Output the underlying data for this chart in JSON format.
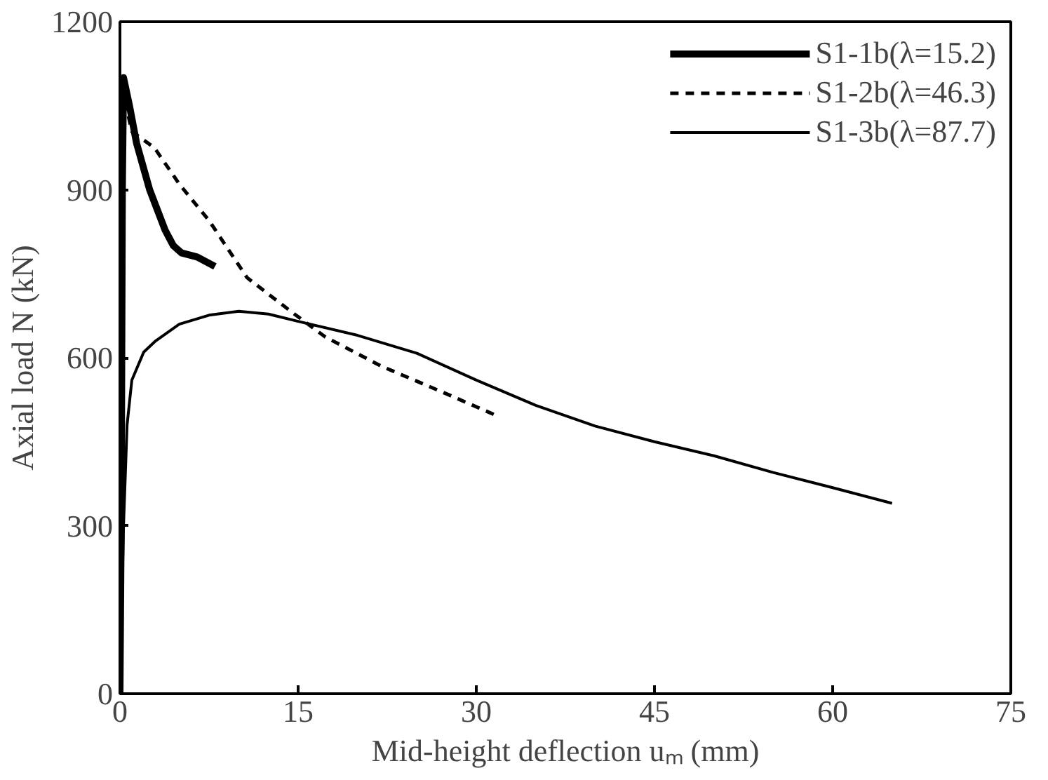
{
  "chart_data": {
    "type": "line",
    "xlabel": "Mid-height deflection uₘ (mm)",
    "ylabel": "Axial load N (kN)",
    "xlim": [
      0,
      75
    ],
    "xticks": [
      0,
      15,
      30,
      45,
      60,
      75
    ],
    "ylim": [
      0,
      1200
    ],
    "yticks": [
      0,
      300,
      600,
      900,
      1200
    ],
    "grid": false,
    "legend": "top right",
    "marker": "none",
    "series": [
      {
        "name": "S1-1b(λ=15.2)",
        "color": "#000000",
        "line_style": "solid",
        "x": [
          0,
          0.1,
          0.2,
          0.3,
          0.8,
          1.4,
          2.5,
          3.8,
          4.5,
          5.2,
          6.5,
          8
        ],
        "values": [
          0,
          300,
          900,
          1100,
          1050,
          983,
          900,
          828,
          800,
          787,
          780,
          763
        ]
      },
      {
        "name": "S1-2b(λ=46.3)",
        "color": "#000000",
        "line_style": "dashed",
        "x": [
          0,
          0.1,
          0.2,
          1,
          2.9,
          5,
          7.5,
          10.7,
          14.5,
          17.3,
          22,
          27,
          32
        ],
        "values": [
          0,
          500,
          1080,
          1004,
          975,
          910,
          845,
          743,
          681,
          637,
          585,
          540,
          494
        ]
      },
      {
        "name": "S1-3b(λ=87.7)",
        "color": "#000000",
        "line_style": "solid",
        "x": [
          0,
          0.3,
          0.6,
          1,
          2,
          3,
          5,
          7.5,
          10,
          12.5,
          15,
          20,
          25,
          30,
          35,
          40,
          45,
          50,
          55,
          60,
          65
        ],
        "values": [
          0,
          300,
          480,
          560,
          610,
          630,
          660,
          676,
          683,
          678,
          665,
          640,
          608,
          560,
          515,
          478,
          450,
          425,
          395,
          368,
          340
        ]
      }
    ]
  }
}
